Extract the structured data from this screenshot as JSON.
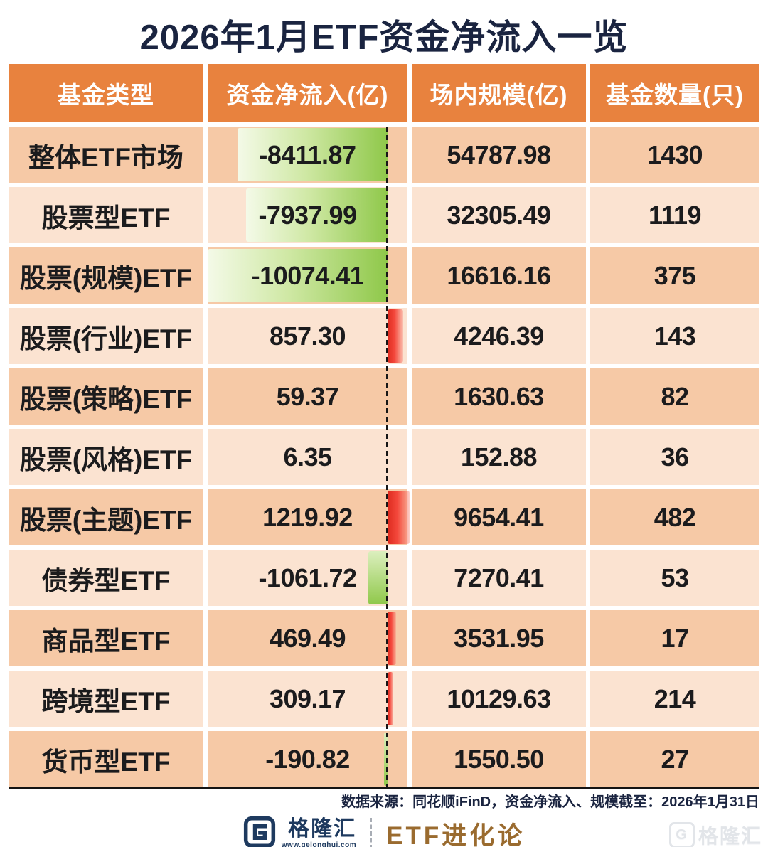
{
  "title": "2026年1月ETF资金净流入一览",
  "chart_data": {
    "type": "table",
    "columns": [
      "基金类型",
      "资金净流入(亿)",
      "场内规模(亿)",
      "基金数量(只)"
    ],
    "rows": [
      {
        "fund_type": "整体ETF市场",
        "net_flow": -8411.87,
        "on_market_scale": 54787.98,
        "fund_count": 1430
      },
      {
        "fund_type": "股票型ETF",
        "net_flow": -7937.99,
        "on_market_scale": 32305.49,
        "fund_count": 1119
      },
      {
        "fund_type": "股票(规模)ETF",
        "net_flow": -10074.41,
        "on_market_scale": 16616.16,
        "fund_count": 375
      },
      {
        "fund_type": "股票(行业)ETF",
        "net_flow": 857.3,
        "on_market_scale": 4246.39,
        "fund_count": 143
      },
      {
        "fund_type": "股票(策略)ETF",
        "net_flow": 59.37,
        "on_market_scale": 1630.63,
        "fund_count": 82
      },
      {
        "fund_type": "股票(风格)ETF",
        "net_flow": 6.35,
        "on_market_scale": 152.88,
        "fund_count": 36
      },
      {
        "fund_type": "股票(主题)ETF",
        "net_flow": 1219.92,
        "on_market_scale": 9654.41,
        "fund_count": 482
      },
      {
        "fund_type": "债券型ETF",
        "net_flow": -1061.72,
        "on_market_scale": 7270.41,
        "fund_count": 53
      },
      {
        "fund_type": "商品型ETF",
        "net_flow": 469.49,
        "on_market_scale": 3531.95,
        "fund_count": 17
      },
      {
        "fund_type": "跨境型ETF",
        "net_flow": 309.17,
        "on_market_scale": 10129.63,
        "fund_count": 214
      },
      {
        "fund_type": "货币型ETF",
        "net_flow": -190.82,
        "on_market_scale": 1550.5,
        "fund_count": 27
      }
    ],
    "value_column_with_bars": "资金净流入(亿)",
    "zero_axis": "dashed vertical line at zero of 资金净流入 column",
    "negative_bar_meaning": "net outflow (green)",
    "positive_bar_meaning": "net inflow (red)",
    "colors": {
      "header_bg": "#E8823E",
      "row_dark": "#F6C9A6",
      "row_light": "#FBE3D1",
      "green_hi": "#8FC84A",
      "green_lo": "#F4FAE8",
      "red_hi": "#DD2B1E",
      "title_ink": "#1A2440",
      "navy": "#1E3A5F",
      "bronze": "#9A6B2F"
    }
  },
  "footer": {
    "source_note": "数据来源：同花顺iFinD，资金净流入、规模截至：2026年1月31日",
    "brand": "格隆汇",
    "brand_url": "www.gelonghui.com",
    "series_name": "ETF进化论",
    "watermark": "格隆汇"
  }
}
